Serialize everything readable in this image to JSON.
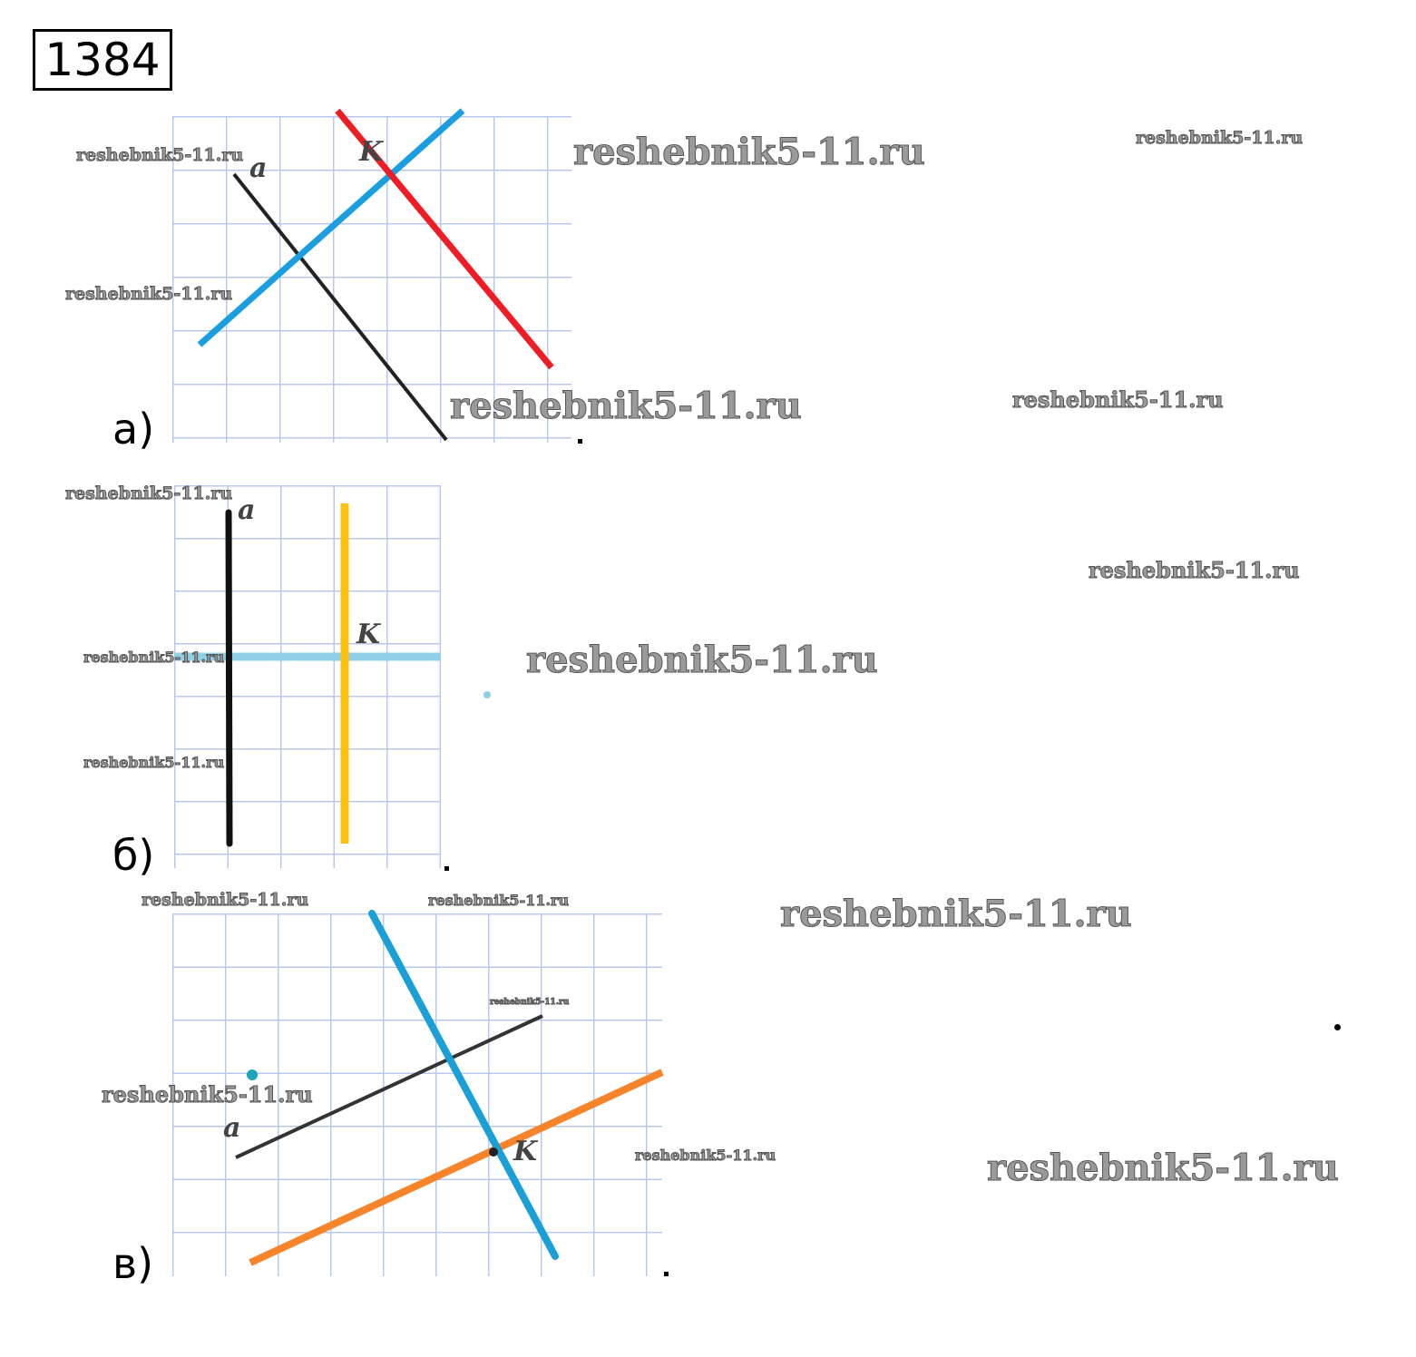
{
  "problem_number": "1384",
  "parts": [
    {
      "label": "а)",
      "line_label": "a",
      "point_label": "K"
    },
    {
      "label": "б)",
      "line_label": "a",
      "point_label": "K"
    },
    {
      "label": "в)",
      "line_label": "a",
      "point_label": "K"
    }
  ],
  "watermark": "reshebnik5-11.ru",
  "colors": {
    "grid": "#b8c8ec",
    "line_a": "#222222",
    "part_a_parallel": "#ee1c24",
    "part_a_perpendicular": "#1a9ee0",
    "part_b_parallel": "#ffc20e",
    "part_b_perpendicular": "#8fd0e6",
    "part_c_parallel": "#f7832a",
    "part_c_perpendicular": "#1a9fd6"
  }
}
